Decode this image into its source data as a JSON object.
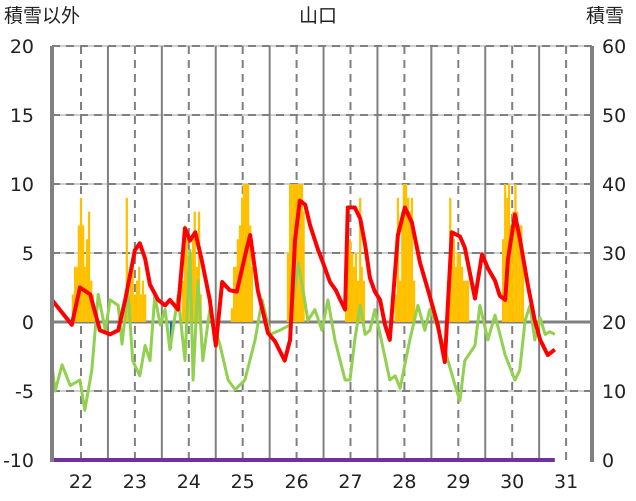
{
  "chart_data": {
    "type": "line",
    "title": "山口",
    "ylabel_left": "積雪以外",
    "ylabel_right": "積雪",
    "ylim_left": [
      -10,
      20
    ],
    "ylim_right": [
      0,
      60
    ],
    "yticks_left": [
      "20",
      "15",
      "10",
      "5",
      "0",
      "-5",
      "-10"
    ],
    "yticks_right": [
      "60",
      "50",
      "40",
      "30",
      "20",
      "10",
      "0"
    ],
    "xticks": [
      "22",
      "23",
      "24",
      "25",
      "26",
      "27",
      "28",
      "29",
      "30",
      "31"
    ],
    "xlim": [
      21.46,
      31.48
    ],
    "grid": true,
    "colors": {
      "temperature": "#ff0000",
      "other": "#92d050",
      "precip": "#ffc000",
      "negative_bar": "#0070c0",
      "snow": "#7030a0",
      "grid": "#808080"
    },
    "series": [
      {
        "name": "red-line",
        "axis": "left",
        "points": [
          [
            21.46,
            1.6
          ],
          [
            21.83,
            -0.2
          ],
          [
            21.98,
            2.5
          ],
          [
            22.17,
            2.0
          ],
          [
            22.35,
            -0.6
          ],
          [
            22.54,
            -0.9
          ],
          [
            22.69,
            -0.6
          ],
          [
            22.82,
            1.6
          ],
          [
            23.0,
            5.2
          ],
          [
            23.09,
            5.7
          ],
          [
            23.19,
            4.6
          ],
          [
            23.28,
            2.7
          ],
          [
            23.43,
            1.6
          ],
          [
            23.56,
            1.2
          ],
          [
            23.65,
            1.6
          ],
          [
            23.8,
            0.9
          ],
          [
            23.93,
            6.8
          ],
          [
            24.02,
            5.9
          ],
          [
            24.12,
            6.5
          ],
          [
            24.24,
            4.5
          ],
          [
            24.39,
            1.6
          ],
          [
            24.5,
            -1.7
          ],
          [
            24.62,
            2.9
          ],
          [
            24.76,
            2.3
          ],
          [
            24.89,
            2.2
          ],
          [
            25.08,
            5.4
          ],
          [
            25.14,
            6.3
          ],
          [
            25.28,
            2.3
          ],
          [
            25.47,
            -0.8
          ],
          [
            25.6,
            -1.4
          ],
          [
            25.78,
            -2.8
          ],
          [
            25.88,
            -1.3
          ],
          [
            25.97,
            5.9
          ],
          [
            26.06,
            8.8
          ],
          [
            26.16,
            8.5
          ],
          [
            26.25,
            7.0
          ],
          [
            26.4,
            5.2
          ],
          [
            26.49,
            4.3
          ],
          [
            26.62,
            2.9
          ],
          [
            26.73,
            2.3
          ],
          [
            26.81,
            1.6
          ],
          [
            26.9,
            0.9
          ],
          [
            26.95,
            8.3
          ],
          [
            27.08,
            8.3
          ],
          [
            27.18,
            7.5
          ],
          [
            27.27,
            5.6
          ],
          [
            27.36,
            3.2
          ],
          [
            27.45,
            2.2
          ],
          [
            27.55,
            1.6
          ],
          [
            27.64,
            -0.2
          ],
          [
            27.73,
            -1.3
          ],
          [
            27.88,
            6.3
          ],
          [
            28.01,
            8.3
          ],
          [
            28.14,
            7.2
          ],
          [
            28.29,
            4.3
          ],
          [
            28.44,
            2.3
          ],
          [
            28.62,
            -0.2
          ],
          [
            28.75,
            -2.9
          ],
          [
            28.88,
            6.5
          ],
          [
            29.03,
            6.2
          ],
          [
            29.12,
            5.4
          ],
          [
            29.31,
            1.7
          ],
          [
            29.44,
            4.9
          ],
          [
            29.55,
            3.9
          ],
          [
            29.68,
            3.0
          ],
          [
            29.77,
            1.9
          ],
          [
            29.87,
            1.6
          ],
          [
            29.92,
            4.5
          ],
          [
            30.05,
            7.8
          ],
          [
            30.14,
            6.1
          ],
          [
            30.29,
            2.7
          ],
          [
            30.42,
            0.1
          ],
          [
            30.52,
            -1.3
          ],
          [
            30.66,
            -2.4
          ],
          [
            30.79,
            -2.0
          ]
        ]
      },
      {
        "name": "green-line",
        "axis": "left",
        "points": [
          [
            21.46,
            -3.1
          ],
          [
            21.52,
            -5
          ],
          [
            21.65,
            -3.1
          ],
          [
            21.8,
            -4.6
          ],
          [
            21.98,
            -4.2
          ],
          [
            22.07,
            -6.4
          ],
          [
            22.2,
            -3.5
          ],
          [
            22.32,
            2.0
          ],
          [
            22.45,
            -0.6
          ],
          [
            22.54,
            1.6
          ],
          [
            22.69,
            1.2
          ],
          [
            22.76,
            -1.6
          ],
          [
            22.87,
            2.3
          ],
          [
            22.96,
            -2.8
          ],
          [
            23.09,
            -3.9
          ],
          [
            23.19,
            -1.7
          ],
          [
            23.28,
            -2.8
          ],
          [
            23.37,
            1.9
          ],
          [
            23.47,
            -0.2
          ],
          [
            23.56,
            0.9
          ],
          [
            23.65,
            -2.0
          ],
          [
            23.8,
            1.9
          ],
          [
            23.93,
            -2.8
          ],
          [
            24.02,
            5.2
          ],
          [
            24.08,
            -4.2
          ],
          [
            24.17,
            3.0
          ],
          [
            24.26,
            -2.8
          ],
          [
            24.39,
            0.9
          ],
          [
            24.58,
            -1.7
          ],
          [
            24.73,
            -4.2
          ],
          [
            24.86,
            -4.9
          ],
          [
            25.04,
            -4.2
          ],
          [
            25.23,
            -1.3
          ],
          [
            25.36,
            1.6
          ],
          [
            25.51,
            -0.9
          ],
          [
            25.69,
            -0.6
          ],
          [
            25.88,
            -0.2
          ],
          [
            26.03,
            4.3
          ],
          [
            26.12,
            2.3
          ],
          [
            26.21,
            0.1
          ],
          [
            26.34,
            0.9
          ],
          [
            26.47,
            -0.6
          ],
          [
            26.58,
            1.6
          ],
          [
            26.71,
            -1.3
          ],
          [
            26.9,
            -4.2
          ],
          [
            26.99,
            -4.2
          ],
          [
            27.08,
            -1.3
          ],
          [
            27.18,
            1.2
          ],
          [
            27.27,
            -0.9
          ],
          [
            27.36,
            -0.6
          ],
          [
            27.45,
            0.9
          ],
          [
            27.55,
            -0.9
          ],
          [
            27.73,
            -4.2
          ],
          [
            27.83,
            -3.9
          ],
          [
            27.92,
            -4.8
          ],
          [
            28.1,
            -1.3
          ],
          [
            28.25,
            1.2
          ],
          [
            28.38,
            -0.6
          ],
          [
            28.47,
            0.9
          ],
          [
            28.57,
            0.1
          ],
          [
            28.75,
            -2.0
          ],
          [
            28.94,
            -4.6
          ],
          [
            29.03,
            -5.7
          ],
          [
            29.12,
            -2.8
          ],
          [
            29.31,
            -1.7
          ],
          [
            29.4,
            1.2
          ],
          [
            29.55,
            -1.3
          ],
          [
            29.68,
            0.5
          ],
          [
            29.87,
            -2.4
          ],
          [
            30.05,
            -4.2
          ],
          [
            30.14,
            -3.5
          ],
          [
            30.24,
            0.1
          ],
          [
            30.33,
            1.2
          ],
          [
            30.42,
            -1.3
          ],
          [
            30.52,
            0.3
          ],
          [
            30.61,
            -0.9
          ],
          [
            30.7,
            -0.7
          ],
          [
            30.79,
            -0.9
          ]
        ]
      },
      {
        "name": "snow-depth",
        "axis": "right",
        "points": [
          [
            21.46,
            0
          ],
          [
            30.79,
            0
          ]
        ]
      }
    ],
    "bars": [
      [
        21.85,
        2
      ],
      [
        21.89,
        4
      ],
      [
        21.93,
        4
      ],
      [
        21.96,
        7
      ],
      [
        22.0,
        9
      ],
      [
        22.04,
        7
      ],
      [
        22.07,
        4
      ],
      [
        22.11,
        6
      ],
      [
        22.15,
        8
      ],
      [
        22.19,
        3
      ],
      [
        22.22,
        2
      ],
      [
        22.85,
        9
      ],
      [
        22.89,
        2
      ],
      [
        22.93,
        3
      ],
      [
        22.96,
        4
      ],
      [
        23.0,
        2
      ],
      [
        23.04,
        3
      ],
      [
        23.08,
        4
      ],
      [
        23.11,
        2
      ],
      [
        23.15,
        3
      ],
      [
        23.19,
        2
      ],
      [
        23.89,
        3
      ],
      [
        23.93,
        7
      ],
      [
        23.96,
        6
      ],
      [
        24.0,
        4
      ],
      [
        24.04,
        5
      ],
      [
        24.08,
        6
      ],
      [
        24.11,
        8
      ],
      [
        24.15,
        4
      ],
      [
        24.19,
        8
      ],
      [
        24.22,
        2
      ],
      [
        24.8,
        1
      ],
      [
        24.84,
        4
      ],
      [
        24.88,
        4
      ],
      [
        24.91,
        6
      ],
      [
        24.95,
        7
      ],
      [
        24.99,
        9
      ],
      [
        25.02,
        10
      ],
      [
        25.06,
        10
      ],
      [
        25.1,
        10
      ],
      [
        25.14,
        7
      ],
      [
        25.17,
        4
      ],
      [
        25.84,
        5
      ],
      [
        25.88,
        10
      ],
      [
        25.91,
        10
      ],
      [
        25.95,
        10
      ],
      [
        25.99,
        10
      ],
      [
        26.02,
        10
      ],
      [
        26.06,
        10
      ],
      [
        26.1,
        10
      ],
      [
        26.13,
        8
      ],
      [
        26.92,
        2
      ],
      [
        26.95,
        7
      ],
      [
        26.99,
        6
      ],
      [
        27.03,
        5
      ],
      [
        27.06,
        4
      ],
      [
        27.1,
        5
      ],
      [
        27.14,
        3
      ],
      [
        27.18,
        9
      ],
      [
        27.21,
        4
      ],
      [
        27.25,
        3
      ],
      [
        27.84,
        2
      ],
      [
        27.88,
        9
      ],
      [
        27.92,
        3
      ],
      [
        27.96,
        8
      ],
      [
        27.99,
        10
      ],
      [
        28.03,
        10
      ],
      [
        28.07,
        9
      ],
      [
        28.1,
        8
      ],
      [
        28.14,
        9
      ],
      [
        28.18,
        3
      ],
      [
        28.81,
        3
      ],
      [
        28.85,
        9
      ],
      [
        28.88,
        5
      ],
      [
        28.92,
        6
      ],
      [
        28.96,
        4
      ],
      [
        28.99,
        5
      ],
      [
        29.03,
        5
      ],
      [
        29.07,
        4
      ],
      [
        29.1,
        3
      ],
      [
        29.14,
        3
      ],
      [
        29.18,
        3
      ],
      [
        29.83,
        6
      ],
      [
        29.87,
        10
      ],
      [
        29.91,
        9
      ],
      [
        29.94,
        10
      ],
      [
        29.98,
        7
      ],
      [
        30.02,
        8
      ],
      [
        30.06,
        10
      ],
      [
        30.09,
        8
      ],
      [
        30.13,
        7
      ],
      [
        30.17,
        7
      ],
      [
        30.2,
        5
      ]
    ],
    "negative_bars": [
      [
        23.6,
        -0.5
      ],
      [
        23.67,
        -1.9
      ]
    ]
  }
}
